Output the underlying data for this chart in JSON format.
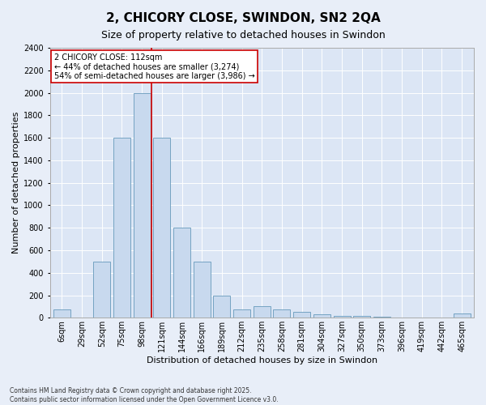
{
  "title": "2, CHICORY CLOSE, SWINDON, SN2 2QA",
  "subtitle": "Size of property relative to detached houses in Swindon",
  "xlabel": "Distribution of detached houses by size in Swindon",
  "ylabel": "Number of detached properties",
  "categories": [
    "6sqm",
    "29sqm",
    "52sqm",
    "75sqm",
    "98sqm",
    "121sqm",
    "144sqm",
    "166sqm",
    "189sqm",
    "212sqm",
    "235sqm",
    "258sqm",
    "281sqm",
    "304sqm",
    "327sqm",
    "350sqm",
    "373sqm",
    "396sqm",
    "419sqm",
    "442sqm",
    "465sqm"
  ],
  "bar_heights": [
    75,
    0,
    500,
    1600,
    2000,
    1600,
    800,
    500,
    200,
    75,
    100,
    75,
    50,
    30,
    20,
    15,
    10,
    5,
    0,
    0,
    40
  ],
  "bar_color": "#c8d9ee",
  "bar_edge_color": "#6699bb",
  "vline_color": "#cc0000",
  "vline_x": 4.5,
  "annotation_text": "2 CHICORY CLOSE: 112sqm\n← 44% of detached houses are smaller (3,274)\n54% of semi-detached houses are larger (3,986) →",
  "annotation_box_facecolor": "#ffffff",
  "annotation_box_edgecolor": "#cc0000",
  "footnote": "Contains HM Land Registry data © Crown copyright and database right 2025.\nContains public sector information licensed under the Open Government Licence v3.0.",
  "bg_color": "#e8eef8",
  "plot_bg_color": "#dce6f5",
  "grid_color": "#ffffff",
  "ylim": [
    0,
    2400
  ],
  "yticks": [
    0,
    200,
    400,
    600,
    800,
    1000,
    1200,
    1400,
    1600,
    1800,
    2000,
    2200,
    2400
  ],
  "title_fontsize": 11,
  "subtitle_fontsize": 9,
  "tick_fontsize": 7,
  "ylabel_fontsize": 8,
  "xlabel_fontsize": 8,
  "annot_fontsize": 7,
  "footnote_fontsize": 5.5
}
